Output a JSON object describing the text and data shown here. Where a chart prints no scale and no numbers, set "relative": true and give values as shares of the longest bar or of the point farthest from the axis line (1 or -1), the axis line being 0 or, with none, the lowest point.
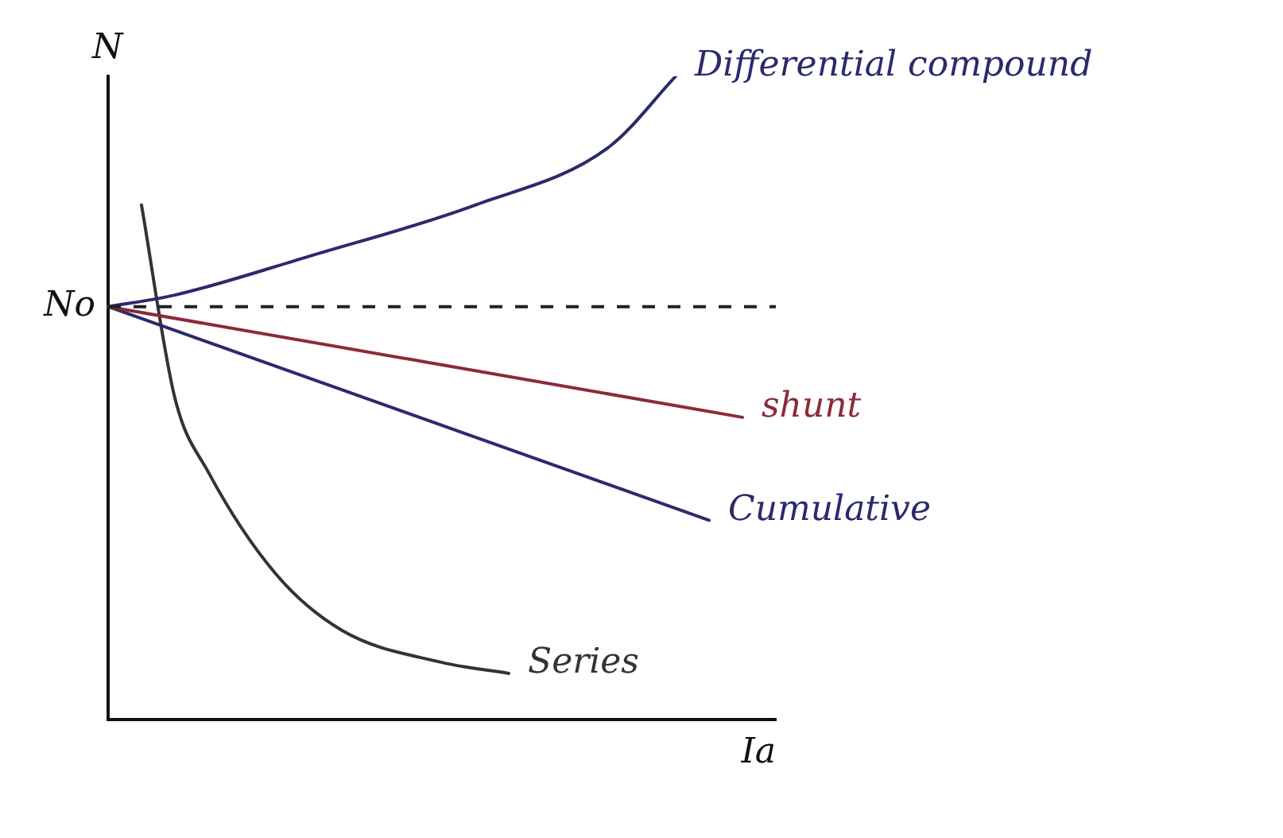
{
  "chart_data": {
    "type": "line",
    "relative": true,
    "xlabel": "Ia",
    "ylabel": "N",
    "marker": "none",
    "line_style": "solid",
    "categories": [
      null,
      null,
      null,
      null,
      null,
      null,
      null,
      null,
      null,
      null,
      null,
      null,
      null,
      null,
      null,
      null,
      null,
      null,
      null,
      null,
      null
    ],
    "ref_lines": [
      {
        "axis": "y",
        "value": 0.642,
        "label": "No",
        "line_style": "dashed",
        "color": "#222222"
      }
    ],
    "series": [
      {
        "name": "Differential compound",
        "color": "#2a2a6e",
        "values": [
          0.642,
          null,
          0.66,
          null,
          null,
          null,
          0.72,
          null,
          null,
          null,
          null,
          0.8,
          null,
          null,
          null,
          0.89,
          null,
          1.0,
          null,
          null,
          null
        ]
      },
      {
        "name": "shunt",
        "color": "#8b2a3a",
        "values": [
          0.642,
          null,
          null,
          null,
          null,
          null,
          null,
          null,
          null,
          null,
          null,
          null,
          null,
          null,
          null,
          null,
          null,
          null,
          null,
          0.47,
          null
        ]
      },
      {
        "name": "Cumulative",
        "color": "#2a2a6e",
        "values": [
          0.642,
          null,
          null,
          null,
          null,
          null,
          null,
          null,
          null,
          null,
          null,
          null,
          null,
          null,
          null,
          null,
          null,
          null,
          0.31,
          null,
          null
        ]
      },
      {
        "name": "Series",
        "color": "#333333",
        "values": [
          null,
          0.8,
          0.5,
          0.385,
          null,
          0.228,
          null,
          0.139,
          null,
          null,
          0.089,
          null,
          0.072,
          null,
          null,
          null,
          null,
          null,
          null,
          null,
          null
        ]
      }
    ]
  }
}
